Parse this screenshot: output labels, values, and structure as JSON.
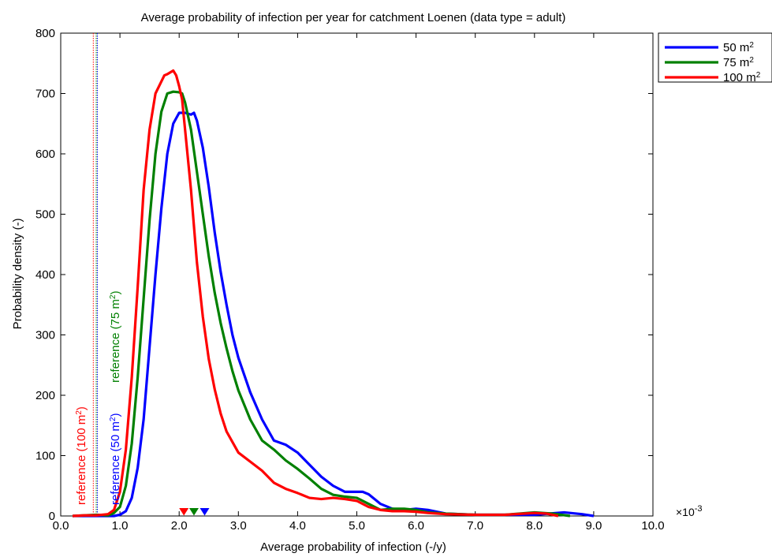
{
  "chart_data": {
    "type": "line",
    "title": "Average probability of infection per year for catchment Loenen (data type = adult)",
    "xlabel": "Average probability of infection (-/y)",
    "ylabel": "Probability density (-)",
    "x_multiplier_label": "×10-3",
    "xlim": [
      0,
      10
    ],
    "ylim": [
      0,
      800
    ],
    "xticks": [
      "0.0",
      "1.0",
      "2.0",
      "3.0",
      "4.0",
      "5.0",
      "6.0",
      "7.0",
      "8.0",
      "9.0",
      "10.0"
    ],
    "yticks": [
      "0",
      "100",
      "200",
      "300",
      "400",
      "500",
      "600",
      "700",
      "800"
    ],
    "grid": false,
    "legend_position": "outside-top-right",
    "series": [
      {
        "name": "50 m2",
        "legend_text": "50 m",
        "legend_sup": "2",
        "color": "#0000ff",
        "x": [
          0.2,
          0.6,
          0.9,
          1.0,
          1.1,
          1.2,
          1.3,
          1.4,
          1.5,
          1.6,
          1.7,
          1.8,
          1.9,
          2.0,
          2.1,
          2.2,
          2.25,
          2.3,
          2.4,
          2.5,
          2.6,
          2.7,
          2.8,
          2.9,
          3.0,
          3.2,
          3.4,
          3.6,
          3.8,
          4.0,
          4.2,
          4.4,
          4.6,
          4.8,
          5.0,
          5.1,
          5.2,
          5.4,
          5.6,
          5.8,
          6.0,
          6.2,
          6.5,
          7.0,
          7.5,
          8.0,
          8.5,
          8.8,
          9.0
        ],
        "y": [
          0,
          0,
          0,
          2,
          8,
          30,
          80,
          160,
          280,
          400,
          510,
          600,
          650,
          668,
          668,
          665,
          668,
          655,
          610,
          545,
          470,
          405,
          350,
          300,
          262,
          205,
          160,
          125,
          118,
          105,
          85,
          65,
          50,
          40,
          40,
          40,
          36,
          20,
          12,
          10,
          12,
          10,
          4,
          2,
          2,
          2,
          6,
          3,
          0
        ]
      },
      {
        "name": "75 m2",
        "legend_text": "75 m",
        "legend_sup": "2",
        "color": "#008000",
        "x": [
          0.2,
          0.4,
          0.6,
          0.8,
          0.9,
          1.0,
          1.1,
          1.2,
          1.3,
          1.4,
          1.5,
          1.6,
          1.7,
          1.8,
          1.9,
          2.0,
          2.05,
          2.1,
          2.2,
          2.3,
          2.4,
          2.5,
          2.6,
          2.7,
          2.8,
          2.9,
          3.0,
          3.2,
          3.4,
          3.6,
          3.8,
          4.0,
          4.2,
          4.4,
          4.6,
          4.8,
          5.0,
          5.2,
          5.4,
          5.6,
          5.8,
          6.0,
          6.2,
          6.5,
          7.0,
          7.5,
          8.0,
          8.3,
          8.6
        ],
        "y": [
          0,
          1,
          2,
          1,
          5,
          15,
          50,
          120,
          230,
          360,
          490,
          600,
          670,
          700,
          703,
          702,
          700,
          685,
          640,
          570,
          500,
          430,
          370,
          320,
          278,
          240,
          208,
          160,
          125,
          110,
          92,
          78,
          62,
          45,
          35,
          32,
          30,
          20,
          10,
          12,
          12,
          10,
          6,
          4,
          2,
          2,
          6,
          4,
          0
        ]
      },
      {
        "name": "100 m2",
        "legend_text": "100 m",
        "legend_sup": "2",
        "color": "#ff0000",
        "x": [
          0.2,
          0.4,
          0.6,
          0.8,
          0.9,
          1.0,
          1.1,
          1.2,
          1.3,
          1.4,
          1.5,
          1.6,
          1.7,
          1.75,
          1.8,
          1.85,
          1.9,
          1.95,
          2.0,
          2.05,
          2.1,
          2.2,
          2.3,
          2.4,
          2.5,
          2.6,
          2.7,
          2.8,
          3.0,
          3.2,
          3.4,
          3.6,
          3.8,
          4.0,
          4.2,
          4.4,
          4.6,
          4.8,
          5.0,
          5.2,
          5.4,
          5.6,
          5.8,
          6.0,
          6.2,
          6.5,
          7.0,
          7.5,
          8.0,
          8.2,
          8.4
        ],
        "y": [
          0,
          1,
          1,
          3,
          10,
          40,
          110,
          230,
          380,
          540,
          640,
          700,
          720,
          730,
          732,
          735,
          738,
          730,
          712,
          690,
          640,
          540,
          420,
          330,
          260,
          210,
          170,
          140,
          105,
          90,
          75,
          55,
          45,
          38,
          30,
          28,
          30,
          28,
          25,
          15,
          10,
          8,
          8,
          7,
          5,
          3,
          2,
          2,
          5,
          4,
          0
        ]
      }
    ],
    "reference_lines": [
      {
        "x": 0.55,
        "color": "#ff0000",
        "label_text": "reference (100 m",
        "label_sup": "2",
        "label_close": ")"
      },
      {
        "x": 0.62,
        "color": "#0000ff",
        "label_text": "reference (50 m",
        "label_sup": "2",
        "label_close": ")"
      },
      {
        "x": 0.6,
        "color": "#008000",
        "label_text": "reference (75 m",
        "label_sup": "2",
        "label_close": ")"
      }
    ],
    "markers": [
      {
        "x": 2.08,
        "color": "#ff0000"
      },
      {
        "x": 2.25,
        "color": "#008000"
      },
      {
        "x": 2.43,
        "color": "#0000ff"
      }
    ]
  }
}
